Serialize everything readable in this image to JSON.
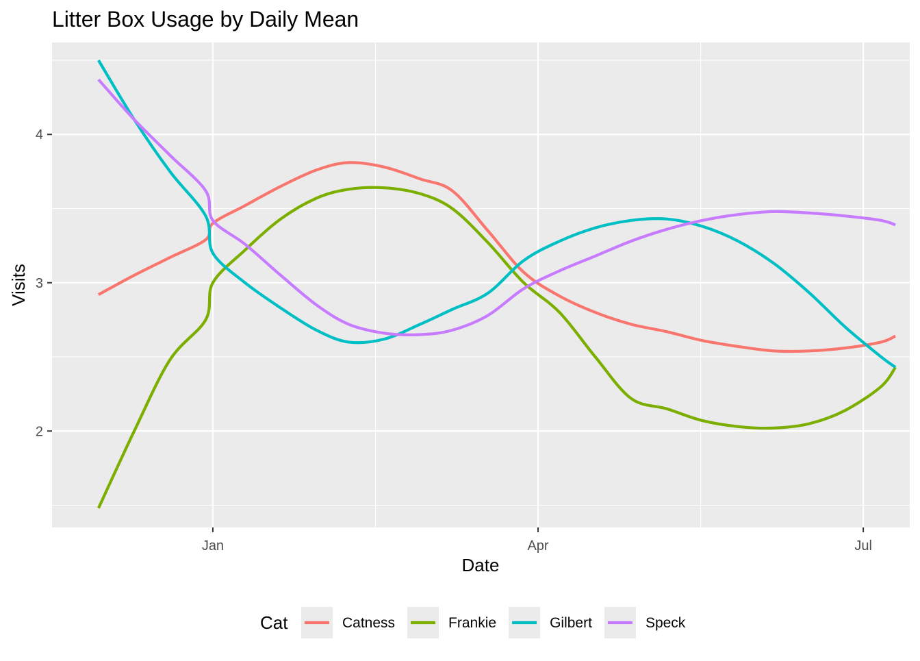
{
  "chart_data": {
    "type": "line",
    "title": "Litter Box Usage by Daily Mean",
    "xlabel": "Date",
    "ylabel": "Visits",
    "x_axis": {
      "type": "date",
      "range": [
        "2019-11-17",
        "2020-07-14"
      ],
      "ticks": [
        {
          "value": "2020-01-01",
          "label": "Jan"
        },
        {
          "value": "2020-04-01",
          "label": "Apr"
        },
        {
          "value": "2020-07-01",
          "label": "Jul"
        }
      ]
    },
    "y_axis": {
      "range": [
        1.35,
        4.62
      ],
      "ticks": [
        2,
        3,
        4
      ]
    },
    "grid": true,
    "legend": {
      "title": "Cat",
      "position": "bottom"
    },
    "series": [
      {
        "name": "Catness",
        "color": "#F8766D",
        "points": [
          [
            "2019-11-30",
            2.92
          ],
          [
            "2019-12-10",
            3.05
          ],
          [
            "2019-12-20",
            3.17
          ],
          [
            "2019-12-30",
            3.29
          ],
          [
            "2020-01-01",
            3.4
          ],
          [
            "2020-01-10",
            3.52
          ],
          [
            "2020-01-20",
            3.65
          ],
          [
            "2020-01-30",
            3.76
          ],
          [
            "2020-02-08",
            3.81
          ],
          [
            "2020-02-18",
            3.78
          ],
          [
            "2020-02-28",
            3.7
          ],
          [
            "2020-03-08",
            3.62
          ],
          [
            "2020-03-18",
            3.35
          ],
          [
            "2020-03-28",
            3.07
          ],
          [
            "2020-04-07",
            2.91
          ],
          [
            "2020-04-17",
            2.8
          ],
          [
            "2020-04-27",
            2.72
          ],
          [
            "2020-05-07",
            2.67
          ],
          [
            "2020-05-17",
            2.61
          ],
          [
            "2020-05-27",
            2.57
          ],
          [
            "2020-06-06",
            2.54
          ],
          [
            "2020-06-16",
            2.54
          ],
          [
            "2020-06-26",
            2.56
          ],
          [
            "2020-07-06",
            2.6
          ],
          [
            "2020-07-10",
            2.64
          ]
        ]
      },
      {
        "name": "Frankie",
        "color": "#7CAE00",
        "points": [
          [
            "2019-11-30",
            1.48
          ],
          [
            "2019-12-10",
            2.0
          ],
          [
            "2019-12-20",
            2.48
          ],
          [
            "2019-12-30",
            2.75
          ],
          [
            "2020-01-01",
            3.0
          ],
          [
            "2020-01-10",
            3.22
          ],
          [
            "2020-01-20",
            3.43
          ],
          [
            "2020-01-30",
            3.57
          ],
          [
            "2020-02-08",
            3.63
          ],
          [
            "2020-02-18",
            3.64
          ],
          [
            "2020-02-28",
            3.6
          ],
          [
            "2020-03-08",
            3.5
          ],
          [
            "2020-03-18",
            3.27
          ],
          [
            "2020-03-28",
            3.0
          ],
          [
            "2020-04-07",
            2.8
          ],
          [
            "2020-04-17",
            2.5
          ],
          [
            "2020-04-27",
            2.22
          ],
          [
            "2020-05-07",
            2.15
          ],
          [
            "2020-05-17",
            2.07
          ],
          [
            "2020-05-27",
            2.03
          ],
          [
            "2020-06-06",
            2.02
          ],
          [
            "2020-06-16",
            2.05
          ],
          [
            "2020-06-26",
            2.14
          ],
          [
            "2020-07-06",
            2.3
          ],
          [
            "2020-07-10",
            2.43
          ]
        ]
      },
      {
        "name": "Gilbert",
        "color": "#00BFC4",
        "points": [
          [
            "2019-11-30",
            4.5
          ],
          [
            "2019-12-10",
            4.1
          ],
          [
            "2019-12-20",
            3.75
          ],
          [
            "2019-12-30",
            3.45
          ],
          [
            "2020-01-01",
            3.2
          ],
          [
            "2020-01-10",
            3.0
          ],
          [
            "2020-01-20",
            2.83
          ],
          [
            "2020-01-30",
            2.68
          ],
          [
            "2020-02-08",
            2.6
          ],
          [
            "2020-02-18",
            2.62
          ],
          [
            "2020-02-28",
            2.72
          ],
          [
            "2020-03-08",
            2.82
          ],
          [
            "2020-03-18",
            2.93
          ],
          [
            "2020-03-28",
            3.15
          ],
          [
            "2020-04-07",
            3.28
          ],
          [
            "2020-04-17",
            3.37
          ],
          [
            "2020-04-27",
            3.42
          ],
          [
            "2020-05-07",
            3.43
          ],
          [
            "2020-05-17",
            3.38
          ],
          [
            "2020-05-27",
            3.28
          ],
          [
            "2020-06-06",
            3.13
          ],
          [
            "2020-06-16",
            2.93
          ],
          [
            "2020-06-26",
            2.7
          ],
          [
            "2020-07-06",
            2.5
          ],
          [
            "2020-07-10",
            2.43
          ]
        ]
      },
      {
        "name": "Speck",
        "color": "#C77CFF",
        "points": [
          [
            "2019-11-30",
            4.37
          ],
          [
            "2019-12-10",
            4.1
          ],
          [
            "2019-12-20",
            3.86
          ],
          [
            "2019-12-30",
            3.62
          ],
          [
            "2020-01-01",
            3.42
          ],
          [
            "2020-01-10",
            3.26
          ],
          [
            "2020-01-20",
            3.05
          ],
          [
            "2020-01-30",
            2.85
          ],
          [
            "2020-02-08",
            2.72
          ],
          [
            "2020-02-18",
            2.66
          ],
          [
            "2020-02-28",
            2.65
          ],
          [
            "2020-03-08",
            2.68
          ],
          [
            "2020-03-18",
            2.78
          ],
          [
            "2020-03-28",
            2.96
          ],
          [
            "2020-04-07",
            3.08
          ],
          [
            "2020-04-17",
            3.18
          ],
          [
            "2020-04-27",
            3.28
          ],
          [
            "2020-05-07",
            3.36
          ],
          [
            "2020-05-17",
            3.42
          ],
          [
            "2020-05-27",
            3.46
          ],
          [
            "2020-06-06",
            3.48
          ],
          [
            "2020-06-16",
            3.47
          ],
          [
            "2020-06-26",
            3.45
          ],
          [
            "2020-07-06",
            3.42
          ],
          [
            "2020-07-10",
            3.39
          ]
        ]
      }
    ]
  }
}
